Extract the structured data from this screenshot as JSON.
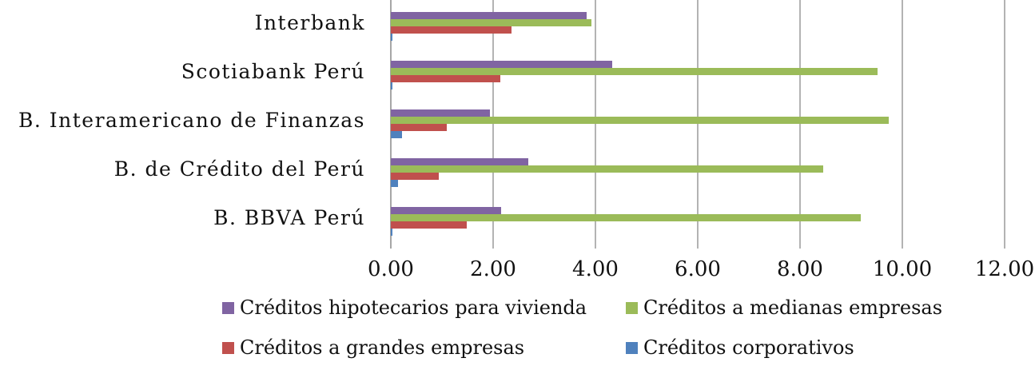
{
  "chart_data": {
    "type": "bar",
    "orientation": "horizontal",
    "title": "",
    "xlabel": "",
    "ylabel": "",
    "xlim": [
      0,
      12
    ],
    "x_ticks": [
      "0.00",
      "2.00",
      "4.00",
      "6.00",
      "8.00",
      "10.00",
      "12.00"
    ],
    "grid": true,
    "legend_position": "bottom",
    "categories": [
      "Interbank",
      "Scotiabank Perú",
      "B. Interamericano de Finanzas",
      "B. de Crédito del Perú",
      "B. BBVA Perú"
    ],
    "series": [
      {
        "name": "Créditos hipotecarios para vivienda",
        "color": "#8064A2",
        "values": [
          3.83,
          4.33,
          1.94,
          2.69,
          2.16
        ]
      },
      {
        "name": "Créditos a medianas empresas",
        "color": "#9BBB59",
        "values": [
          3.92,
          9.52,
          9.73,
          8.45,
          9.19
        ]
      },
      {
        "name": "Créditos a grandes empresas",
        "color": "#C0504D",
        "values": [
          2.36,
          2.14,
          1.09,
          0.94,
          1.48
        ]
      },
      {
        "name": "Créditos corporativos",
        "color": "#4F81BD",
        "values": [
          0.03,
          0.02,
          0.22,
          0.14,
          0.02
        ]
      }
    ]
  },
  "legend": {
    "items": [
      {
        "label": "Créditos hipotecarios para vivienda",
        "color": "#8064A2"
      },
      {
        "label": "Créditos a medianas empresas",
        "color": "#9BBB59"
      },
      {
        "label": "Créditos a grandes empresas",
        "color": "#C0504D"
      },
      {
        "label": "Créditos corporativos",
        "color": "#4F81BD"
      }
    ]
  }
}
